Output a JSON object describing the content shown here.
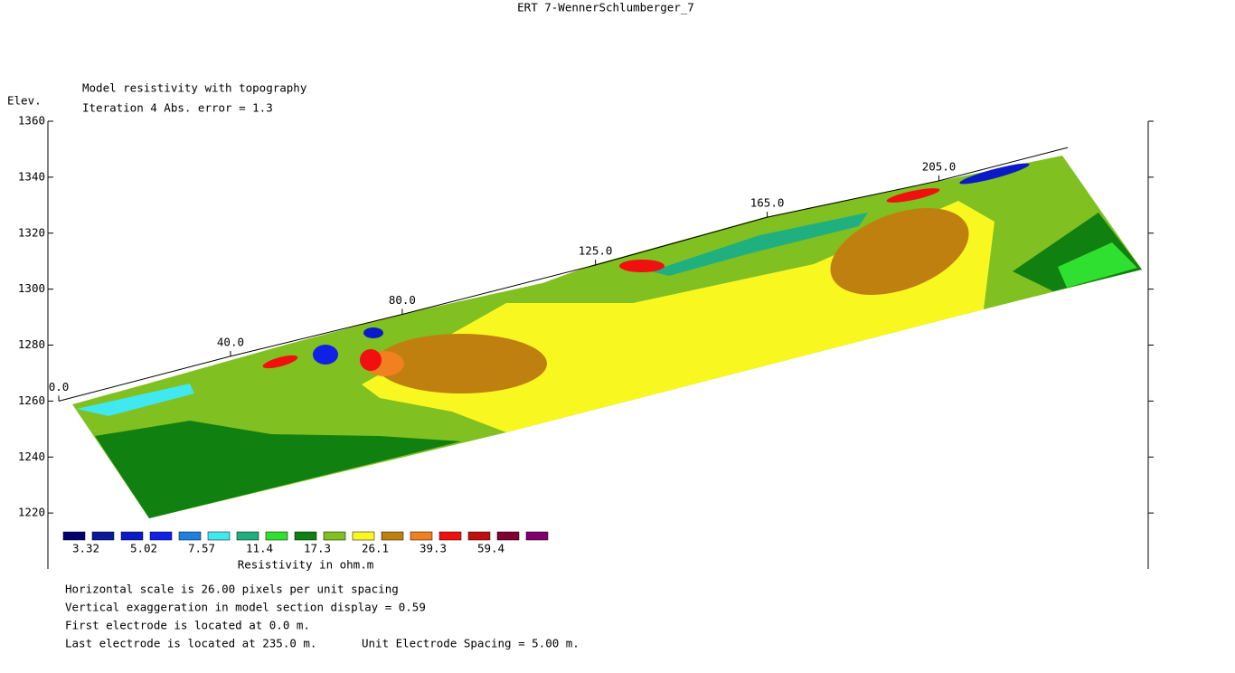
{
  "chart_data": {
    "type": "contour",
    "title": "ERT 7-WennerSchlumberger_7",
    "subtitle": "Model resistivity with topography",
    "iteration": "Iteration 4 Abs. error = 1.3",
    "y_label": "Elev.",
    "ylim": [
      1200,
      1360
    ],
    "yticks": [
      1220,
      1240,
      1260,
      1280,
      1300,
      1320,
      1340,
      1360
    ],
    "xlim": [
      0,
      235
    ],
    "xticks": [
      {
        "value": 0,
        "label": "0.0"
      },
      {
        "value": 40,
        "label": "40.0"
      },
      {
        "value": 80,
        "label": "80.0"
      },
      {
        "value": 125,
        "label": "125.0"
      },
      {
        "value": 165,
        "label": "165.0"
      },
      {
        "value": 205,
        "label": "205.0"
      }
    ],
    "topography": {
      "x": [
        0,
        40,
        80,
        125,
        165,
        205,
        235
      ],
      "elevation": [
        1260,
        1276,
        1291,
        1308.6,
        1325.7,
        1338.7,
        1350.6
      ]
    },
    "legend": {
      "colors": [
        "#000070",
        "#0a1a9a",
        "#0a1ac8",
        "#1020e6",
        "#2080e0",
        "#40e8f0",
        "#20b080",
        "#30e030",
        "#108010",
        "#80c020",
        "#f8f820",
        "#c08010",
        "#f08020",
        "#f01010",
        "#c01010",
        "#800030",
        "#800070"
      ],
      "labels": [
        3.32,
        5.02,
        7.57,
        11.4,
        17.3,
        26.1,
        39.3,
        59.4
      ],
      "title": "Resistivity in ohm.m"
    },
    "notes": [
      "Horizontal scale is 26.00 pixels per unit spacing",
      "Vertical exaggeration in model section display = 0.59",
      "First electrode is located at 0.0  m.",
      "Last electrode is located at 235.0 m.",
      "Unit Electrode Spacing = 5.00 m."
    ]
  }
}
